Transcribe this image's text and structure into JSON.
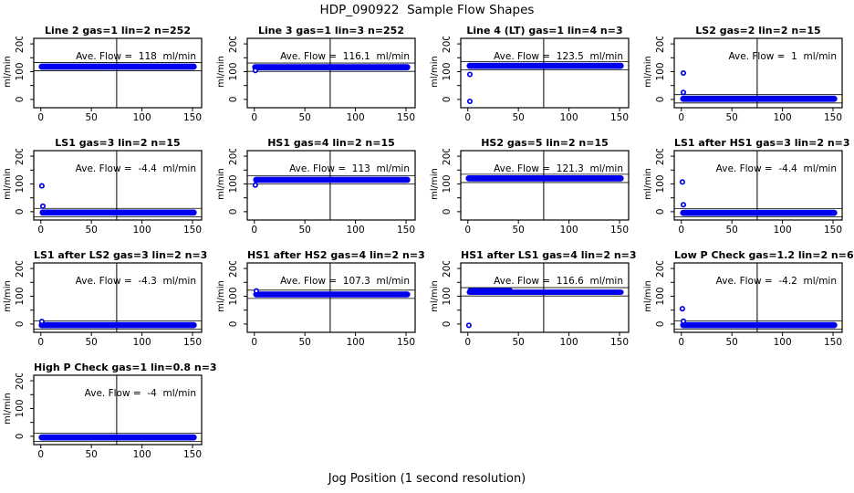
{
  "chart_data": {
    "type": "scatter",
    "title": "HDP_090922  Sample Flow Shapes",
    "xlabel": "Jog Position (1 second resolution)",
    "ylabel": "ml/min",
    "axes": {
      "x_ticks": [
        0,
        50,
        100,
        150
      ],
      "y_ticks": [
        0,
        50,
        100,
        150,
        200
      ],
      "y_labeled_ticks": [
        0,
        100,
        200
      ],
      "xlim": [
        -7,
        159
      ],
      "ylim": [
        -30,
        220
      ],
      "vline_x": 75,
      "grid": false
    },
    "point_color": "#0000EE",
    "line_color": "#000000",
    "plots": [
      {
        "title": "Line 2 gas=1 lin=2 n=252",
        "ave_flow": 118,
        "ave_flow_text": "Ave. Flow =  118  ml/min",
        "band_x": [
          0,
          152
        ],
        "band_y": [
          107,
          129
        ],
        "ref_lines": [
          103,
          133
        ],
        "outliers": [],
        "extra_bands": []
      },
      {
        "title": "Line 3 gas=1 lin=3 n=252",
        "ave_flow": 116.1,
        "ave_flow_text": "Ave. Flow =  116.1  ml/min",
        "band_x": [
          0,
          152
        ],
        "band_y": [
          105,
          127
        ],
        "ref_lines": [
          101,
          131
        ],
        "outliers": [
          [
            1,
            104
          ]
        ],
        "extra_bands": []
      },
      {
        "title": "Line 4 (LT) gas=1 lin=4 n=3",
        "ave_flow": 123.5,
        "ave_flow_text": "Ave. Flow =  123.5  ml/min",
        "band_x": [
          1,
          152
        ],
        "band_y": [
          110,
          132
        ],
        "ref_lines": [
          106,
          136
        ],
        "outliers": [
          [
            2,
            90
          ],
          [
            2,
            -7
          ]
        ],
        "extra_bands": []
      },
      {
        "title": "LS2 gas=2 lin=2 n=15",
        "ave_flow": 1,
        "ave_flow_text": "Ave. Flow =  1  ml/min",
        "band_x": [
          1,
          152
        ],
        "band_y": [
          -9,
          13
        ],
        "ref_lines": [
          -13,
          17
        ],
        "outliers": [
          [
            2,
            95
          ],
          [
            2,
            25
          ]
        ],
        "extra_bands": []
      },
      {
        "title": "LS1 gas=3 lin=2 n=15",
        "ave_flow": -4.4,
        "ave_flow_text": "Ave. Flow =  -4.4  ml/min",
        "band_x": [
          1,
          152
        ],
        "band_y": [
          -14,
          8
        ],
        "ref_lines": [
          -18,
          12
        ],
        "outliers": [
          [
            1,
            93
          ],
          [
            2,
            20
          ]
        ],
        "extra_bands": []
      },
      {
        "title": "HS1 gas=4 lin=2 n=15",
        "ave_flow": 113,
        "ave_flow_text": "Ave. Flow =  113  ml/min",
        "band_x": [
          1,
          152
        ],
        "band_y": [
          104,
          126
        ],
        "ref_lines": [
          100,
          130
        ],
        "outliers": [
          [
            1,
            96
          ]
        ],
        "extra_bands": []
      },
      {
        "title": "HS2 gas=5 lin=2 n=15",
        "ave_flow": 121.3,
        "ave_flow_text": "Ave. Flow =  121.3  ml/min",
        "band_x": [
          0,
          152
        ],
        "band_y": [
          109,
          131
        ],
        "ref_lines": [
          105,
          135
        ],
        "outliers": [],
        "extra_bands": []
      },
      {
        "title": "LS1 after HS1 gas=3 lin=2 n=3",
        "ave_flow": -4.4,
        "ave_flow_text": "Ave. Flow =  -4.4  ml/min",
        "band_x": [
          1,
          152
        ],
        "band_y": [
          -15,
          7
        ],
        "ref_lines": [
          -19,
          11
        ],
        "outliers": [
          [
            1,
            107
          ],
          [
            2,
            25
          ]
        ],
        "extra_bands": []
      },
      {
        "title": "LS1 after LS2 gas=3 lin=2 n=3",
        "ave_flow": -4.3,
        "ave_flow_text": "Ave. Flow =  -4.3  ml/min",
        "band_x": [
          0,
          152
        ],
        "band_y": [
          -15,
          7
        ],
        "ref_lines": [
          -19,
          11
        ],
        "outliers": [
          [
            1,
            9
          ]
        ],
        "extra_bands": []
      },
      {
        "title": "HS1 after HS2 gas=4 lin=2 n=3",
        "ave_flow": 107.3,
        "ave_flow_text": "Ave. Flow =  107.3  ml/min",
        "band_x": [
          1,
          152
        ],
        "band_y": [
          96,
          117
        ],
        "ref_lines": [
          92,
          122
        ],
        "outliers": [
          [
            2,
            119
          ]
        ],
        "extra_bands": []
      },
      {
        "title": "HS1 after LS1 gas=4 lin=2 n=3",
        "ave_flow": 116.6,
        "ave_flow_text": "Ave. Flow =  116.6  ml/min",
        "band_x": [
          1,
          152
        ],
        "band_y": [
          105,
          124
        ],
        "ref_lines": [
          101,
          131
        ],
        "outliers": [
          [
            1,
            -5
          ]
        ],
        "extra_bands": [
          [
            2,
            42,
            118,
            130
          ]
        ]
      },
      {
        "title": "Low P Check gas=1.2 lin=2 n=6",
        "ave_flow": -4.2,
        "ave_flow_text": "Ave. Flow =  -4.2  ml/min",
        "band_x": [
          1,
          152
        ],
        "band_y": [
          -15,
          7
        ],
        "ref_lines": [
          -19,
          11
        ],
        "outliers": [
          [
            1,
            55
          ],
          [
            2,
            10
          ]
        ],
        "extra_bands": []
      },
      {
        "title": "High P Check gas=1 lin=0.8 n=3",
        "ave_flow": -4,
        "ave_flow_text": "Ave. Flow =  -4  ml/min",
        "band_x": [
          0,
          152
        ],
        "band_y": [
          -15,
          7
        ],
        "ref_lines": [
          -19,
          11
        ],
        "outliers": [],
        "extra_bands": []
      }
    ]
  }
}
